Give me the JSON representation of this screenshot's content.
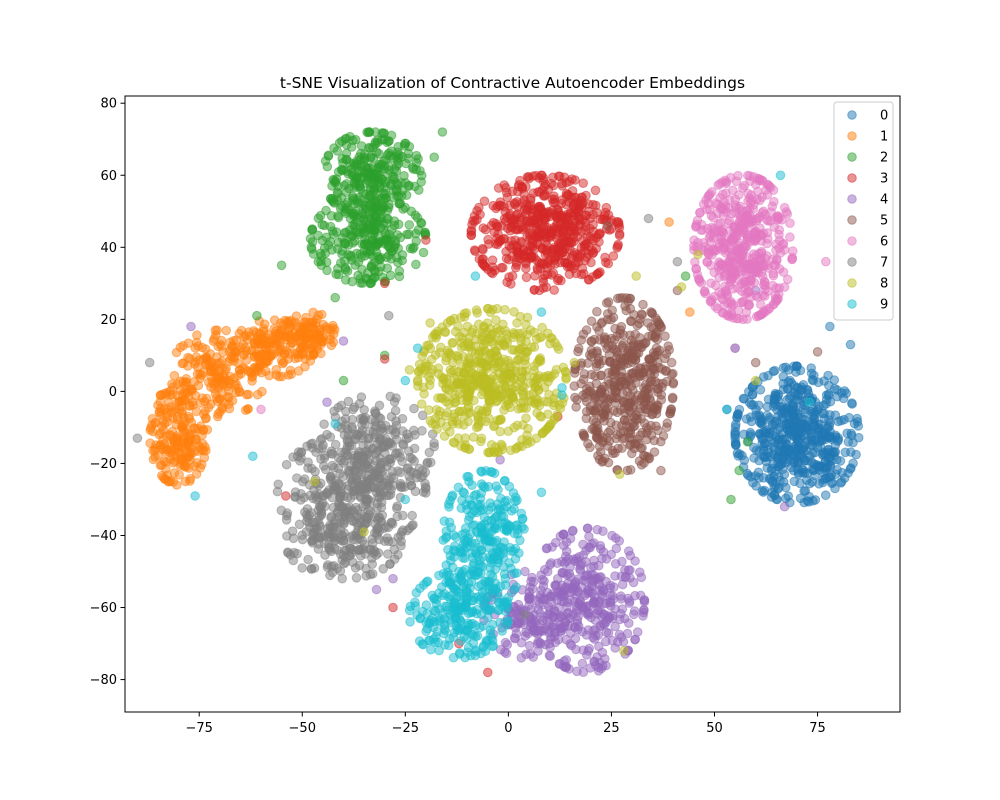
{
  "chart_data": {
    "type": "scatter",
    "title": "t-SNE Visualization of Contractive Autoencoder Embeddings",
    "xlabel": "",
    "ylabel": "",
    "xlim": [
      -93,
      95
    ],
    "ylim": [
      -89,
      82
    ],
    "x_ticks": [
      -75,
      -50,
      -25,
      0,
      25,
      50,
      75
    ],
    "y_ticks": [
      -80,
      -60,
      -40,
      -20,
      0,
      20,
      40,
      60,
      80
    ],
    "x_tick_labels": [
      "−75",
      "−50",
      "−25",
      "0",
      "25",
      "50",
      "75"
    ],
    "y_tick_labels": [
      "−80",
      "−60",
      "−40",
      "−20",
      "0",
      "20",
      "40",
      "60",
      "80"
    ],
    "grid": false,
    "legend_position": "top-right",
    "marker_alpha": 0.5,
    "series": [
      {
        "name": "0",
        "color": "#1f77b4",
        "clusters": [
          {
            "center": [
              70,
              -12
            ],
            "spread": [
              7.5,
              9.5
            ],
            "n": 560
          }
        ],
        "outliers": [
          [
            53,
            -5
          ],
          [
            78,
            18
          ],
          [
            83,
            13
          ],
          [
            55,
            12
          ],
          [
            57,
            -2
          ]
        ]
      },
      {
        "name": "1",
        "color": "#ff7f0e",
        "clusters": [
          {
            "center": [
              -80,
              -12
            ],
            "spread": [
              3.5,
              7
            ],
            "n": 200
          },
          {
            "center": [
              -70,
              5
            ],
            "spread": [
              6,
              6
            ],
            "n": 180
          },
          {
            "center": [
              -57,
              12
            ],
            "spread": [
              5,
              4
            ],
            "n": 150
          },
          {
            "center": [
              -48,
              16
            ],
            "spread": [
              3,
              3
            ],
            "n": 90
          }
        ],
        "outliers": [
          [
            39,
            47
          ],
          [
            44,
            22
          ],
          [
            -2,
            42
          ]
        ]
      },
      {
        "name": "2",
        "color": "#2ca02c",
        "clusters": [
          {
            "center": [
              -33,
              60
            ],
            "spread": [
              6,
              6
            ],
            "n": 260
          },
          {
            "center": [
              -34,
              42
            ],
            "spread": [
              7,
              6
            ],
            "n": 260
          }
        ],
        "outliers": [
          [
            -16,
            72
          ],
          [
            -18,
            65
          ],
          [
            -55,
            35
          ],
          [
            -40,
            3
          ],
          [
            -30,
            10
          ],
          [
            43,
            32
          ],
          [
            56,
            -22
          ],
          [
            58,
            -14
          ],
          [
            54,
            -30
          ],
          [
            -42,
            26
          ],
          [
            -61,
            21
          ]
        ]
      },
      {
        "name": "3",
        "color": "#d62728",
        "clusters": [
          {
            "center": [
              9,
              44
            ],
            "spread": [
              9,
              8
            ],
            "n": 540
          }
        ],
        "outliers": [
          [
            -20,
            42
          ],
          [
            -30,
            30
          ],
          [
            -30,
            9
          ],
          [
            12,
            -7
          ],
          [
            -12,
            -70
          ],
          [
            -28,
            -60
          ],
          [
            -5,
            -78
          ],
          [
            -54,
            -29
          ]
        ]
      },
      {
        "name": "4",
        "color": "#9467bd",
        "clusters": [
          {
            "center": [
              19,
              -58
            ],
            "spread": [
              7,
              10
            ],
            "n": 360
          },
          {
            "center": [
              4,
              -62
            ],
            "spread": [
              5,
              6
            ],
            "n": 120
          }
        ],
        "outliers": [
          [
            -77,
            18
          ],
          [
            -40,
            14
          ],
          [
            -32,
            -55
          ],
          [
            -28,
            -52
          ],
          [
            -2,
            -19
          ],
          [
            60,
            28
          ],
          [
            67,
            -32
          ],
          [
            -44,
            -3
          ]
        ]
      },
      {
        "name": "5",
        "color": "#8c564b",
        "clusters": [
          {
            "center": [
              28,
              2
            ],
            "spread": [
              6,
              12
            ],
            "n": 480
          }
        ],
        "outliers": [
          [
            41,
            28
          ],
          [
            60,
            8
          ],
          [
            75,
            11
          ],
          [
            21,
            -2
          ],
          [
            24,
            46
          ],
          [
            37,
            -22
          ]
        ]
      },
      {
        "name": "6",
        "color": "#e377c2",
        "clusters": [
          {
            "center": [
              57,
              40
            ],
            "spread": [
              6,
              10
            ],
            "n": 480
          }
        ],
        "outliers": [
          [
            77,
            36
          ],
          [
            -60,
            -5
          ],
          [
            55,
            12
          ]
        ]
      },
      {
        "name": "7",
        "color": "#7f7f7f",
        "clusters": [
          {
            "center": [
              -32,
              -15
            ],
            "spread": [
              7,
              7
            ],
            "n": 200
          },
          {
            "center": [
              -38,
              -28
            ],
            "spread": [
              9,
              8
            ],
            "n": 300
          },
          {
            "center": [
              -40,
              -42
            ],
            "spread": [
              7,
              5
            ],
            "n": 160
          }
        ],
        "outliers": [
          [
            -29,
            21
          ],
          [
            -87,
            8
          ],
          [
            -90,
            -13
          ],
          [
            4,
            -62
          ],
          [
            34,
            48
          ],
          [
            41,
            36
          ]
        ]
      },
      {
        "name": "8",
        "color": "#bcbd22",
        "clusters": [
          {
            "center": [
              -4,
              3
            ],
            "spread": [
              9,
              10
            ],
            "n": 560
          }
        ],
        "outliers": [
          [
            -24,
            6
          ],
          [
            -47,
            -25
          ],
          [
            -35,
            -39
          ],
          [
            16,
            8
          ],
          [
            27,
            -23
          ],
          [
            28,
            -72
          ],
          [
            42,
            29
          ],
          [
            46,
            38
          ],
          [
            60,
            3
          ],
          [
            31,
            32
          ],
          [
            -19,
            19
          ]
        ]
      },
      {
        "name": "9",
        "color": "#17becf",
        "clusters": [
          {
            "center": [
              -6,
              -42
            ],
            "spread": [
              5,
              10
            ],
            "n": 280
          },
          {
            "center": [
              -12,
              -62
            ],
            "spread": [
              6,
              6
            ],
            "n": 200
          }
        ],
        "outliers": [
          [
            -62,
            -18
          ],
          [
            -76,
            -29
          ],
          [
            -42,
            -9
          ],
          [
            -22,
            12
          ],
          [
            -25,
            3
          ],
          [
            13,
            -1
          ],
          [
            13,
            1
          ],
          [
            8,
            22
          ],
          [
            8,
            -28
          ],
          [
            -25,
            -30
          ],
          [
            53,
            -5
          ],
          [
            66,
            60
          ],
          [
            73,
            -3
          ],
          [
            -8,
            32
          ]
        ]
      }
    ]
  }
}
